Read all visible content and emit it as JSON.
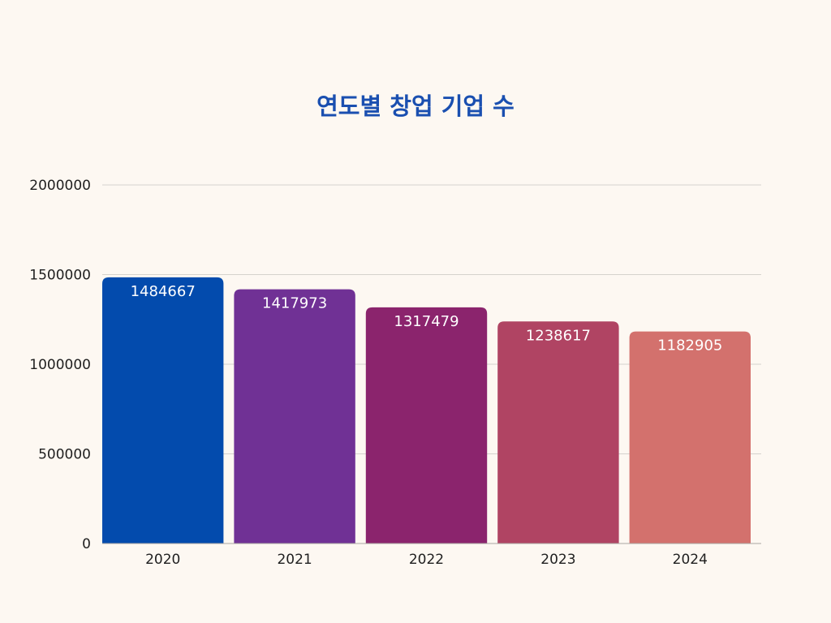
{
  "chart_data": {
    "type": "bar",
    "title": "연도별 창업 기업 수",
    "xlabel": "",
    "ylabel": "",
    "categories": [
      "2020",
      "2021",
      "2022",
      "2023",
      "2024"
    ],
    "values": [
      1484667,
      1417973,
      1317479,
      1238617,
      1182905
    ],
    "data_labels": [
      "1484667",
      "1417973",
      "1317479",
      "1238617",
      "1182905"
    ],
    "ylim": [
      0,
      2000000
    ],
    "yticks": [
      0,
      500000,
      1000000,
      1500000,
      2000000
    ],
    "ytick_labels": [
      "0",
      "500000",
      "1000000",
      "1500000",
      "2000000"
    ],
    "grid": true,
    "legend": "none",
    "colors": {
      "title": "#1a4fb0",
      "bars": [
        "#034bad",
        "#703195",
        "#8b246d",
        "#b04463",
        "#d3716d"
      ]
    }
  }
}
